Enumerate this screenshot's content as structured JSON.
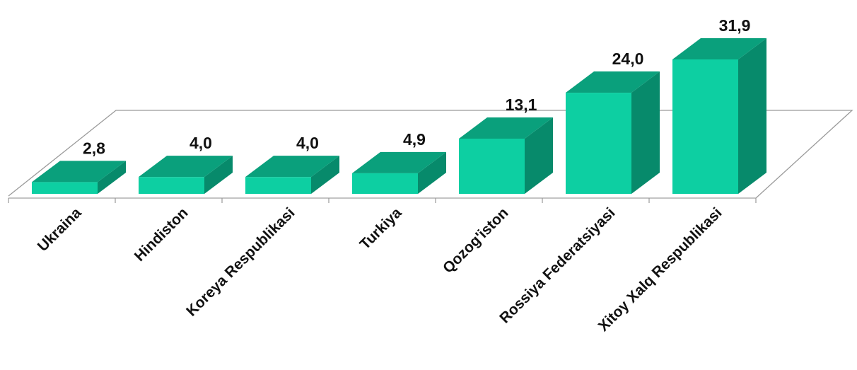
{
  "chart_data": {
    "type": "bar",
    "categories": [
      "Ukraina",
      "Hindiston",
      "Koreya Respublikasi",
      "Turkiya",
      "Qozog'iston",
      "Rossiya Federatsiyasi",
      "Xitoy Xalq Respublikasi"
    ],
    "values": [
      2.8,
      4.0,
      4.0,
      4.9,
      13.1,
      24.0,
      31.9
    ],
    "value_labels": [
      "2,8",
      "4,0",
      "4,0",
      "4,9",
      "13,1",
      "24,0",
      "31,9"
    ],
    "title": "",
    "xlabel": "",
    "ylabel": "",
    "ylim": [
      0,
      32
    ],
    "grid": false,
    "legend": "none",
    "colors": {
      "bar_front": "#0dcfa2",
      "bar_top": "#0aa07c",
      "bar_side": "#078a6b",
      "floor_line": "#9a9a9a"
    }
  }
}
